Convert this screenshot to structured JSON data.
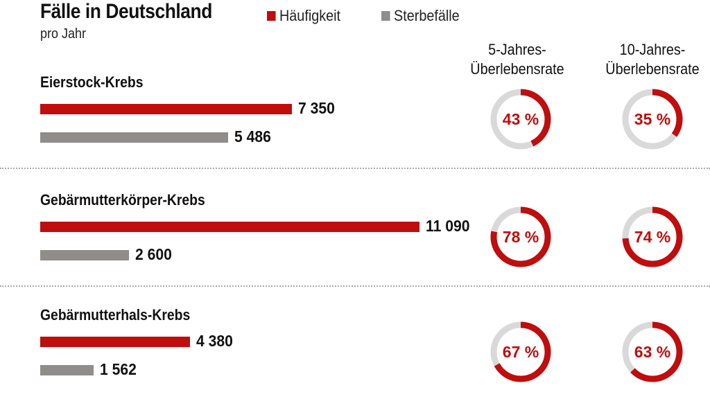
{
  "title": "Fälle in Deutschland",
  "subtitle": "pro Jahr",
  "colors": {
    "haeufigkeit": "#c00d0d",
    "sterbefaelle": "#8f8c8a",
    "donut_track": "#d9d9d9"
  },
  "legend": [
    {
      "label": "Häufigkeit",
      "color": "#c00d0d"
    },
    {
      "label": "Sterbefälle",
      "color": "#8f8c8a"
    }
  ],
  "columns": {
    "five_year": {
      "line1": "5-Jahres-",
      "line2": "Überlebensrate"
    },
    "ten_year": {
      "line1": "10-Jahres-",
      "line2": "Überlebensrate"
    }
  },
  "chart_data": {
    "type": "bar",
    "categories": [
      "Eierstock-Krebs",
      "Gebärmutterkörper-Krebs",
      "Gebärmutterhals-Krebs"
    ],
    "series": [
      {
        "name": "Häufigkeit",
        "values": [
          7350,
          11090,
          4380
        ],
        "labels": [
          "7 350",
          "11 090",
          "4 380"
        ]
      },
      {
        "name": "Sterbefälle",
        "values": [
          5486,
          2600,
          1562
        ],
        "labels": [
          "5 486",
          "2 600",
          "1 562"
        ]
      }
    ],
    "survival_rates": {
      "five_year": {
        "values": [
          43,
          78,
          67
        ],
        "labels": [
          "43 %",
          "78 %",
          "67 %"
        ]
      },
      "ten_year": {
        "values": [
          35,
          74,
          63
        ],
        "labels": [
          "35 %",
          "74 %",
          "63 %"
        ]
      }
    },
    "xlim": [
      0,
      11090
    ],
    "grid": false,
    "legend_position": "top"
  }
}
